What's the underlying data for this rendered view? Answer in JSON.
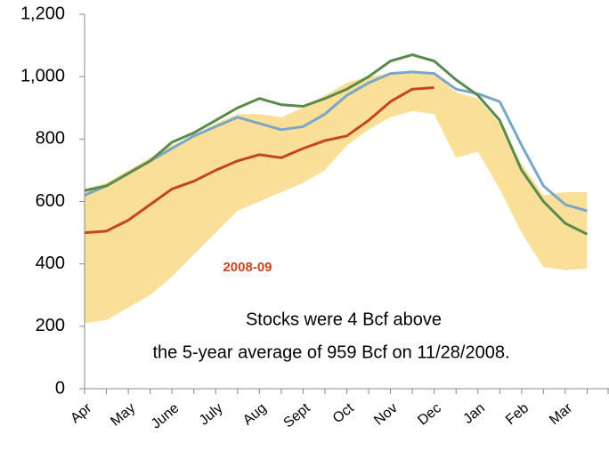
{
  "chart_data": {
    "type": "line",
    "categories": [
      "Apr",
      null,
      "May",
      null,
      "June",
      null,
      "July",
      null,
      "Aug",
      null,
      "Sept",
      null,
      "Oct",
      null,
      "Nov",
      null,
      "Dec",
      null,
      "Jan",
      null,
      "Feb",
      null,
      "Mar",
      null
    ],
    "band": {
      "color": "#fadf98",
      "upper": [
        640,
        660,
        700,
        740,
        780,
        810,
        850,
        880,
        880,
        870,
        900,
        940,
        980,
        1000,
        1010,
        1010,
        1010,
        950,
        930,
        850,
        720,
        620,
        630,
        630
      ],
      "lower": [
        210,
        220,
        260,
        300,
        360,
        430,
        500,
        570,
        600,
        630,
        660,
        700,
        780,
        830,
        870,
        890,
        880,
        740,
        760,
        640,
        500,
        390,
        380,
        385
      ]
    },
    "series": [
      {
        "color": "#7aa6c8",
        "values": [
          620,
          650,
          690,
          730,
          770,
          810,
          840,
          870,
          850,
          830,
          840,
          880,
          940,
          980,
          1010,
          1015,
          1010,
          960,
          945,
          920,
          780,
          650,
          590,
          570
        ]
      },
      {
        "color": "#5b8a4b",
        "values": [
          635,
          650,
          690,
          730,
          790,
          820,
          860,
          900,
          930,
          910,
          905,
          930,
          960,
          1000,
          1050,
          1070,
          1050,
          990,
          940,
          860,
          700,
          600,
          530,
          495
        ]
      },
      {
        "name": "2008-09",
        "color": "#c4461c",
        "values": [
          500,
          505,
          540,
          590,
          640,
          665,
          700,
          730,
          750,
          740,
          770,
          795,
          810,
          860,
          920,
          960,
          965,
          null,
          null,
          null,
          null,
          null,
          null,
          null
        ]
      }
    ],
    "ylim": [
      0,
      1200
    ],
    "yticks": [
      0,
      200,
      400,
      600,
      800,
      {
        "value": 1000,
        "label": "1,000"
      },
      {
        "value": 1200,
        "label": "1,200"
      }
    ],
    "annotation": [
      "Stocks were 4 Bcf above",
      "the 5-year average of 959 Bcf on 11/28/2008."
    ]
  }
}
